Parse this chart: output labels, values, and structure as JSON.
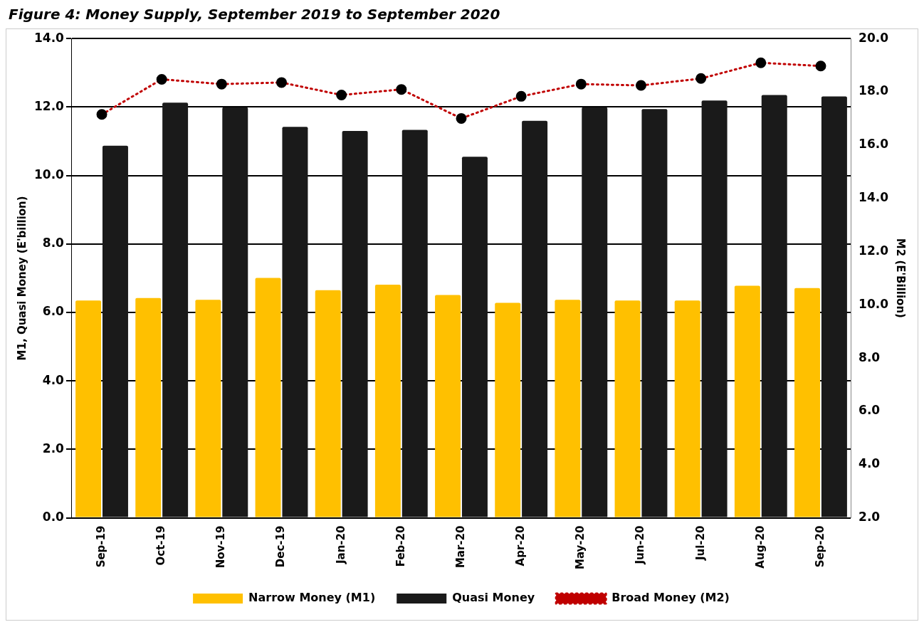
{
  "chart_data": {
    "type": "bar",
    "title": "Figure 4: Money Supply, September 2019 to September 2020",
    "ylabel": "M1, Quasi Money (E'billion)",
    "y2label": "M2 (E'Billion)",
    "categories": [
      "Sep-19",
      "Oct-19",
      "Nov-19",
      "Dec-19",
      "Jan-20",
      "Feb-20",
      "Mar-20",
      "Apr-20",
      "May-20",
      "Jun-20",
      "Jul-20",
      "Aug-20",
      "Sep-20"
    ],
    "series": [
      {
        "name": "Narrow Money (M1)",
        "color": "#ffc000",
        "values": [
          6.35,
          6.42,
          6.37,
          7.01,
          6.65,
          6.81,
          6.51,
          6.28,
          6.37,
          6.35,
          6.35,
          6.78,
          6.71
        ]
      },
      {
        "name": "Quasi Money",
        "color": "#1a1a1a",
        "values": [
          10.87,
          12.13,
          11.99,
          11.42,
          11.3,
          11.33,
          10.55,
          11.6,
          11.99,
          11.94,
          12.19,
          12.35,
          12.31
        ]
      },
      {
        "name": "Broad Money (M2)",
        "type": "line",
        "axis": "y2",
        "color": "#c00000",
        "line_style": "dotted",
        "marker": "circle",
        "values": [
          17.15,
          18.47,
          18.29,
          18.35,
          17.88,
          18.09,
          17.0,
          17.83,
          18.29,
          18.24,
          18.5,
          19.09,
          18.97
        ]
      }
    ],
    "ylim": [
      0,
      14
    ],
    "yticks": [
      {
        "value": 0,
        "label": "0.0"
      },
      {
        "value": 2,
        "label": "2.0"
      },
      {
        "value": 4,
        "label": "4.0"
      },
      {
        "value": 6,
        "label": "6.0"
      },
      {
        "value": 8,
        "label": "8.0"
      },
      {
        "value": 10,
        "label": "10.0"
      },
      {
        "value": 12,
        "label": "12.0"
      },
      {
        "value": 14,
        "label": "14.0"
      }
    ],
    "y2lim": [
      2,
      20
    ],
    "y2ticks": [
      {
        "value": 2,
        "label": "2.0"
      },
      {
        "value": 4,
        "label": "4.0"
      },
      {
        "value": 6,
        "label": "6.0"
      },
      {
        "value": 8,
        "label": "8.0"
      },
      {
        "value": 10,
        "label": "10.0"
      },
      {
        "value": 12,
        "label": "12.0"
      },
      {
        "value": 14,
        "label": "14.0"
      },
      {
        "value": 16,
        "label": "16.0"
      },
      {
        "value": 18,
        "label": "18.0"
      },
      {
        "value": 20,
        "label": "20.0"
      }
    ],
    "grid": "y",
    "legend": "bottom"
  }
}
